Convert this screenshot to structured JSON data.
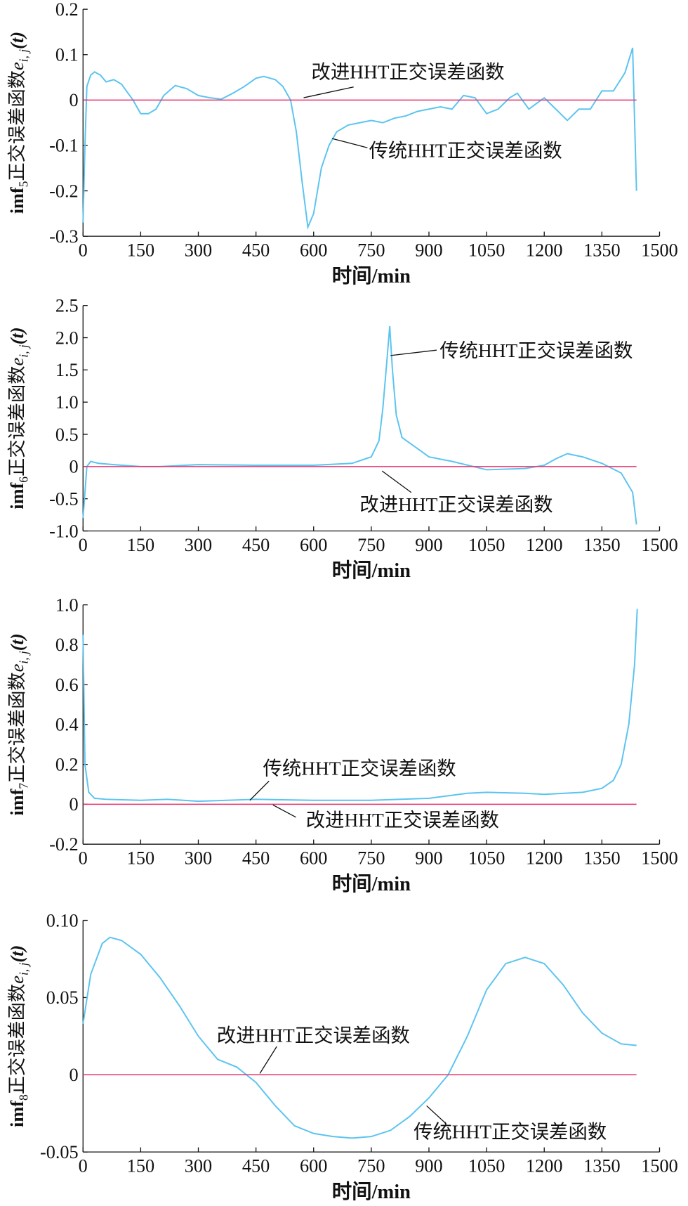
{
  "chart_data": [
    {
      "type": "line",
      "x_label": "时间/min",
      "y_label": [
        "imf",
        "5",
        "正交误差函数",
        "e",
        "i, j",
        "(t)"
      ],
      "xlim": [
        0,
        1500
      ],
      "xticks": [
        0,
        150,
        300,
        450,
        600,
        750,
        900,
        1050,
        1200,
        1350,
        1500
      ],
      "ylim": [
        -0.3,
        0.2
      ],
      "yticks": [
        -0.3,
        -0.2,
        -0.1,
        0,
        0.1,
        0.2
      ],
      "series": [
        {
          "name": "传统HHT正交误差函数",
          "color": "#5bc4f0",
          "x": [
            0,
            5,
            10,
            20,
            30,
            45,
            60,
            80,
            100,
            130,
            150,
            170,
            190,
            210,
            240,
            270,
            300,
            330,
            360,
            390,
            420,
            450,
            470,
            500,
            520,
            540,
            555,
            570,
            585,
            600,
            620,
            640,
            660,
            690,
            720,
            750,
            780,
            810,
            840,
            870,
            900,
            930,
            960,
            990,
            1020,
            1050,
            1080,
            1110,
            1130,
            1160,
            1200,
            1230,
            1260,
            1290,
            1320,
            1350,
            1380,
            1410,
            1430,
            1440
          ],
          "values": [
            -0.27,
            -0.1,
            0.03,
            0.055,
            0.062,
            0.055,
            0.04,
            0.045,
            0.035,
            0.0,
            -0.03,
            -0.03,
            -0.02,
            0.01,
            0.032,
            0.025,
            0.01,
            0.005,
            0.002,
            0.015,
            0.03,
            0.048,
            0.052,
            0.045,
            0.03,
            0.0,
            -0.07,
            -0.18,
            -0.28,
            -0.25,
            -0.15,
            -0.1,
            -0.07,
            -0.055,
            -0.05,
            -0.045,
            -0.05,
            -0.04,
            -0.035,
            -0.025,
            -0.02,
            -0.015,
            -0.02,
            0.01,
            0.005,
            -0.03,
            -0.02,
            0.005,
            0.015,
            -0.02,
            0.005,
            -0.02,
            -0.045,
            -0.02,
            -0.02,
            0.02,
            0.02,
            0.06,
            0.115,
            -0.2
          ]
        },
        {
          "name": "改进HHT正交误差函数",
          "color": "#e8336d",
          "x": [
            0,
            1440
          ],
          "values": [
            0,
            0
          ]
        }
      ]
    },
    {
      "type": "line",
      "x_label": "时间/min",
      "y_label": [
        "imf",
        "6",
        "正交误差函数",
        "e",
        "i, j",
        "(t)"
      ],
      "xlim": [
        0,
        1500
      ],
      "xticks": [
        0,
        150,
        300,
        450,
        600,
        750,
        900,
        1050,
        1200,
        1350,
        1500
      ],
      "ylim": [
        -1.0,
        2.5
      ],
      "yticks": [
        {
          "value": -1.0,
          "label": "-1.0"
        },
        -0.5,
        0,
        0.5,
        {
          "value": 1.0,
          "label": "1.0"
        },
        1.5,
        {
          "value": 2.0,
          "label": "2.0"
        },
        2.5
      ],
      "series": [
        {
          "name": "传统HHT正交误差函数",
          "color": "#5bc4f0",
          "x": [
            0,
            10,
            20,
            40,
            80,
            150,
            200,
            300,
            450,
            600,
            700,
            750,
            770,
            780,
            790,
            798,
            805,
            815,
            830,
            870,
            900,
            960,
            1050,
            1150,
            1200,
            1230,
            1260,
            1300,
            1350,
            1400,
            1430,
            1440
          ],
          "values": [
            -0.8,
            0.0,
            0.08,
            0.05,
            0.03,
            0.0,
            0.0,
            0.03,
            0.02,
            0.02,
            0.05,
            0.15,
            0.4,
            0.9,
            1.6,
            2.18,
            1.5,
            0.8,
            0.45,
            0.28,
            0.15,
            0.08,
            -0.05,
            -0.03,
            0.02,
            0.12,
            0.2,
            0.15,
            0.05,
            -0.1,
            -0.4,
            -0.9
          ]
        },
        {
          "name": "改进HHT正交误差函数",
          "color": "#e8336d",
          "x": [
            0,
            1440
          ],
          "values": [
            0,
            0
          ]
        }
      ]
    },
    {
      "type": "line",
      "x_label": "时间/min",
      "y_label": [
        "imf",
        "7",
        "正交误差函数",
        "e",
        "i, j",
        "(t)"
      ],
      "xlim": [
        0,
        1500
      ],
      "xticks": [
        0,
        150,
        300,
        450,
        600,
        750,
        900,
        1050,
        1200,
        1350,
        1500
      ],
      "ylim": [
        -0.2,
        1.0
      ],
      "yticks": [
        -0.2,
        0,
        0.2,
        0.4,
        0.6,
        0.8,
        {
          "value": 1.0,
          "label": "1.0"
        }
      ],
      "series": [
        {
          "name": "传统HHT正交误差函数",
          "color": "#5bc4f0",
          "x": [
            0,
            5,
            15,
            30,
            60,
            150,
            220,
            300,
            450,
            600,
            750,
            900,
            1000,
            1050,
            1150,
            1200,
            1300,
            1350,
            1380,
            1400,
            1420,
            1435,
            1442
          ],
          "values": [
            0.85,
            0.2,
            0.06,
            0.03,
            0.025,
            0.02,
            0.025,
            0.015,
            0.025,
            0.02,
            0.02,
            0.03,
            0.055,
            0.06,
            0.055,
            0.05,
            0.06,
            0.08,
            0.12,
            0.2,
            0.4,
            0.7,
            0.98
          ]
        },
        {
          "name": "改进HHT正交误差函数",
          "color": "#e8336d",
          "x": [
            0,
            1440
          ],
          "values": [
            0,
            0
          ]
        }
      ]
    },
    {
      "type": "line",
      "x_label": "时间/min",
      "y_label": [
        "imf",
        "8",
        "正交误差函数",
        "e",
        "i, j",
        "(t)"
      ],
      "xlim": [
        0,
        1500
      ],
      "xticks": [
        0,
        150,
        300,
        450,
        600,
        750,
        900,
        1050,
        1200,
        1350,
        1500
      ],
      "ylim": [
        -0.05,
        0.1
      ],
      "yticks": [
        -0.05,
        0,
        0.05,
        {
          "value": 0.1,
          "label": "0.10"
        }
      ],
      "series": [
        {
          "name": "传统HHT正交误差函数",
          "color": "#5bc4f0",
          "x": [
            0,
            20,
            50,
            70,
            100,
            150,
            200,
            250,
            300,
            350,
            400,
            450,
            500,
            550,
            600,
            650,
            700,
            750,
            800,
            850,
            900,
            950,
            1000,
            1050,
            1100,
            1150,
            1200,
            1250,
            1300,
            1350,
            1400,
            1440
          ],
          "values": [
            0.033,
            0.065,
            0.085,
            0.089,
            0.087,
            0.078,
            0.063,
            0.045,
            0.025,
            0.01,
            0.005,
            -0.005,
            -0.02,
            -0.033,
            -0.038,
            -0.04,
            -0.041,
            -0.04,
            -0.036,
            -0.027,
            -0.015,
            0.0,
            0.025,
            0.055,
            0.072,
            0.076,
            0.072,
            0.058,
            0.04,
            0.027,
            0.02,
            0.019
          ]
        },
        {
          "name": "改进HHT正交误差函数",
          "color": "#e8336d",
          "x": [
            0,
            1440
          ],
          "values": [
            0,
            0
          ]
        }
      ]
    }
  ]
}
